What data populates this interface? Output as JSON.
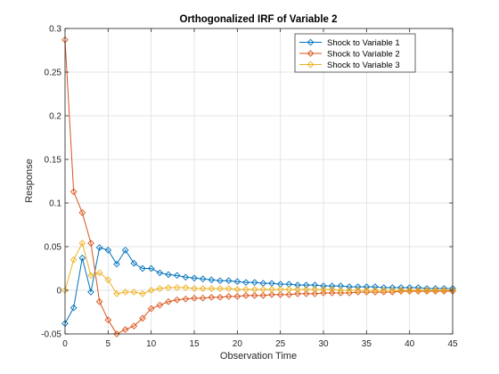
{
  "chart_data": {
    "type": "line",
    "title": "Orthogonalized IRF of Variable 2",
    "xlabel": "Observation Time",
    "ylabel": "Response",
    "xlim": [
      0,
      45
    ],
    "ylim": [
      -0.05,
      0.3
    ],
    "xticks": [
      0,
      5,
      10,
      15,
      20,
      25,
      30,
      35,
      40,
      45
    ],
    "yticks": [
      -0.05,
      0,
      0.05,
      0.1,
      0.15,
      0.2,
      0.25,
      0.3
    ],
    "ytick_labels": [
      "-0.05",
      "0",
      "0.05",
      "0.1",
      "0.15",
      "0.2",
      "0.25",
      "0.3"
    ],
    "grid": true,
    "legend_position": "top-right",
    "marker": "diamond",
    "x": [
      0,
      1,
      2,
      3,
      4,
      5,
      6,
      7,
      8,
      9,
      10,
      11,
      12,
      13,
      14,
      15,
      16,
      17,
      18,
      19,
      20,
      21,
      22,
      23,
      24,
      25,
      26,
      27,
      28,
      29,
      30,
      31,
      32,
      33,
      34,
      35,
      36,
      37,
      38,
      39,
      40,
      41,
      42,
      43,
      44,
      45
    ],
    "series": [
      {
        "name": "Shock to Variable 1",
        "color": "#0072BD",
        "values": [
          -0.038,
          -0.02,
          0.037,
          -0.002,
          0.049,
          0.046,
          0.03,
          0.046,
          0.031,
          0.025,
          0.025,
          0.02,
          0.018,
          0.017,
          0.015,
          0.014,
          0.013,
          0.012,
          0.011,
          0.011,
          0.01,
          0.009,
          0.009,
          0.008,
          0.008,
          0.007,
          0.007,
          0.006,
          0.006,
          0.006,
          0.005,
          0.005,
          0.005,
          0.004,
          0.004,
          0.004,
          0.004,
          0.003,
          0.003,
          0.003,
          0.003,
          0.003,
          0.002,
          0.002,
          0.002,
          0.002
        ]
      },
      {
        "name": "Shock to Variable 2",
        "color": "#D95319",
        "values": [
          0.287,
          0.113,
          0.089,
          0.054,
          -0.013,
          -0.034,
          -0.05,
          -0.045,
          -0.041,
          -0.032,
          -0.021,
          -0.017,
          -0.013,
          -0.011,
          -0.01,
          -0.009,
          -0.009,
          -0.008,
          -0.008,
          -0.007,
          -0.007,
          -0.006,
          -0.006,
          -0.006,
          -0.005,
          -0.005,
          -0.005,
          -0.004,
          -0.004,
          -0.004,
          -0.003,
          -0.003,
          -0.003,
          -0.003,
          -0.002,
          -0.002,
          -0.002,
          -0.002,
          -0.002,
          -0.001,
          -0.001,
          -0.001,
          -0.001,
          -0.001,
          -0.001,
          -0.001
        ]
      },
      {
        "name": "Shock to Variable 3",
        "color": "#EDB120",
        "values": [
          0.0,
          0.035,
          0.054,
          0.017,
          0.02,
          0.012,
          -0.004,
          -0.002,
          -0.002,
          -0.004,
          0.0,
          0.002,
          0.003,
          0.003,
          0.003,
          0.002,
          0.002,
          0.002,
          0.002,
          0.002,
          0.001,
          0.001,
          0.001,
          0.001,
          0.001,
          0.001,
          0.001,
          0.001,
          0.001,
          0.001,
          0.001,
          0.001,
          0.0,
          0.0,
          0.0,
          0.0,
          0.0,
          0.0,
          0.0,
          0.0,
          0.0,
          0.0,
          0.0,
          0.0,
          0.0,
          0.0
        ]
      }
    ]
  }
}
